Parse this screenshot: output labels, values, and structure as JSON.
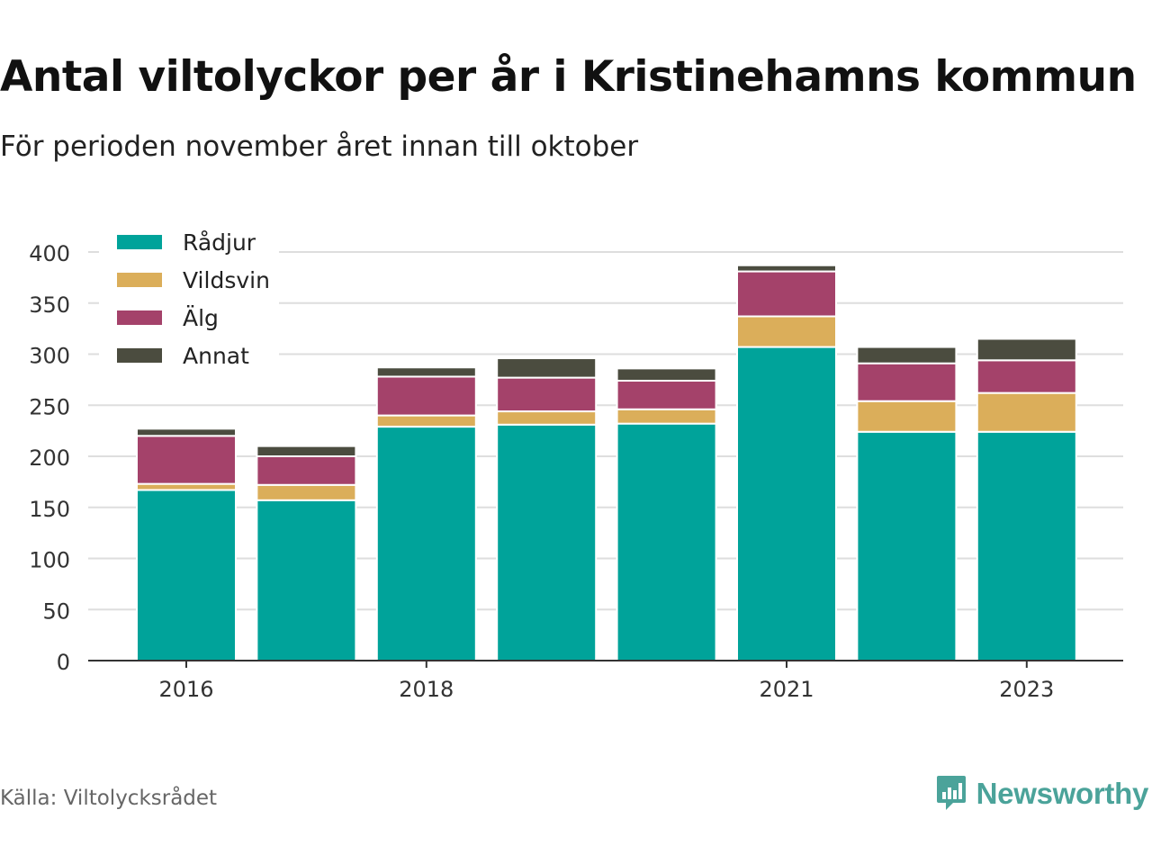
{
  "header": {
    "title": "Antal viltolyckor per år i Kristinehamns kommun",
    "subtitle": "För perioden november året innan till oktober"
  },
  "footer": {
    "source": "Källa: Viltolycksrådet",
    "brand": "Newsworthy",
    "brand_icon": "bar-chart-logo-icon",
    "brand_color": "#4ba39a"
  },
  "chart_data": {
    "type": "bar",
    "stacked": true,
    "categories": [
      "2016",
      "2017",
      "2018",
      "2019",
      "2020",
      "2021",
      "2022",
      "2023"
    ],
    "tick_labels": [
      "2016",
      "",
      "2018",
      "",
      "",
      "2021",
      "",
      "2023"
    ],
    "series": [
      {
        "name": "Rådjur",
        "color": "#00a39a",
        "values": [
          167,
          157,
          229,
          231,
          232,
          307,
          224,
          224
        ]
      },
      {
        "name": "Vildsvin",
        "color": "#dbae5a",
        "values": [
          6,
          15,
          11,
          13,
          14,
          30,
          30,
          38
        ]
      },
      {
        "name": "Älg",
        "color": "#a4426a",
        "values": [
          47,
          28,
          38,
          33,
          28,
          44,
          37,
          32
        ]
      },
      {
        "name": "Annat",
        "color": "#4b4c3f",
        "values": [
          7,
          10,
          9,
          19,
          12,
          6,
          16,
          21
        ]
      }
    ],
    "ylim": [
      0,
      400
    ],
    "yticks": [
      0,
      50,
      100,
      150,
      200,
      250,
      300,
      350,
      400
    ],
    "grid": true,
    "legend": "top-left",
    "xlabel": "",
    "ylabel": ""
  }
}
